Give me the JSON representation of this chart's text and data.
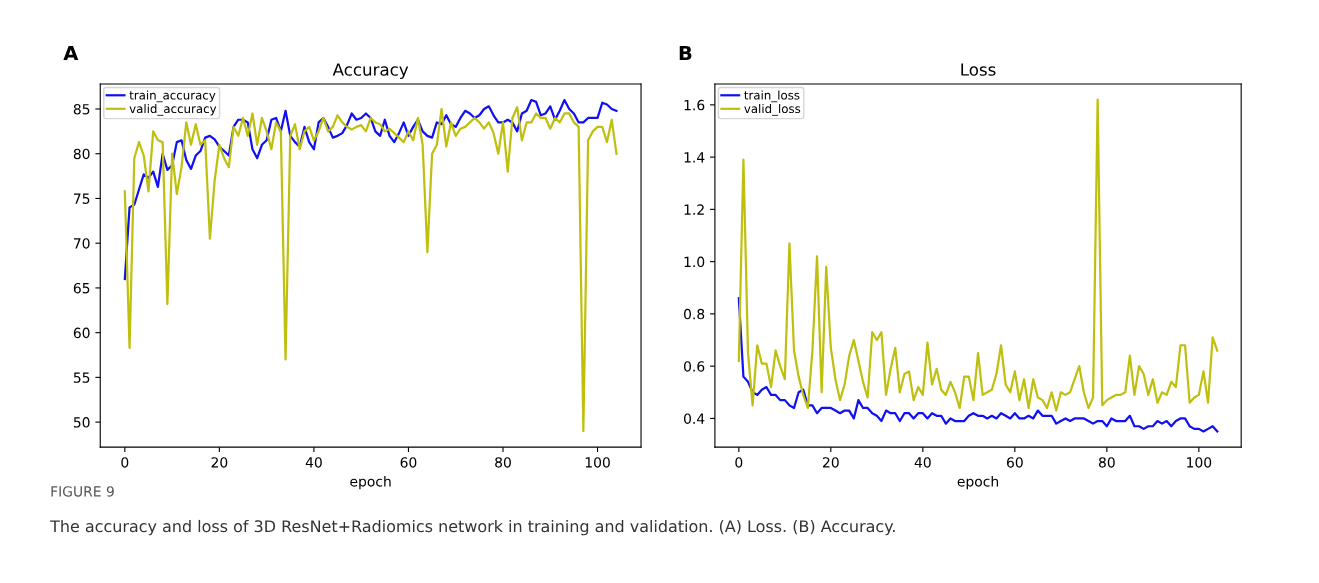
{
  "chart_data": [
    {
      "type": "line",
      "title": "Accuracy",
      "xlabel": "epoch",
      "annotations": [
        "A",
        "FIGURE 9",
        "The accuracy and loss of 3D ResNet+Radiomics network in training and validation. (A) Loss. (B) Accuracy."
      ],
      "x": [
        0,
        1,
        2,
        3,
        4,
        5,
        6,
        7,
        8,
        9,
        10,
        11,
        12,
        13,
        14,
        15,
        16,
        17,
        18,
        19,
        20,
        21,
        22,
        23,
        24,
        25,
        26,
        27,
        28,
        29,
        30,
        31,
        32,
        33,
        34,
        35,
        36,
        37,
        38,
        39,
        40,
        41,
        42,
        43,
        44,
        45,
        46,
        47,
        48,
        49,
        50,
        51,
        52,
        53,
        54,
        55,
        56,
        57,
        58,
        59,
        60,
        61,
        62,
        63,
        64,
        65,
        66,
        67,
        68,
        69,
        70,
        71,
        72,
        73,
        74,
        75,
        76,
        77,
        78,
        79,
        80,
        81,
        82,
        83,
        84,
        85,
        86,
        87,
        88,
        89,
        90,
        91,
        92,
        93,
        94,
        95,
        96,
        97,
        98,
        99,
        100,
        101,
        102,
        103,
        104
      ],
      "xlim": [
        -5.2,
        109.2
      ],
      "xticks": [
        0,
        20,
        40,
        60,
        80,
        100
      ],
      "ylim": [
        47.2,
        87.8
      ],
      "yticks": [
        50,
        55,
        60,
        65,
        70,
        75,
        80,
        85
      ],
      "legend": "top left",
      "grid": false,
      "series": [
        {
          "name": "train_accuracy",
          "color": "#1010f0",
          "values": [
            66,
            74,
            74.3,
            76,
            77.7,
            77.3,
            78,
            76.3,
            80,
            78.2,
            78.7,
            81.3,
            81.5,
            79.3,
            78.3,
            79.8,
            80.3,
            81.8,
            82,
            81.6,
            80.8,
            80.3,
            79.8,
            83,
            83.8,
            83.8,
            83.5,
            80.5,
            79.5,
            81,
            81.5,
            83.8,
            84,
            82.5,
            84.8,
            82,
            81.3,
            80.8,
            83,
            81.3,
            80.5,
            83.5,
            84,
            83,
            81.8,
            82,
            82.3,
            83.2,
            84.5,
            83.8,
            84,
            84.5,
            84,
            82.5,
            82,
            83.8,
            82,
            81.3,
            82.3,
            83.5,
            82,
            83,
            83.8,
            82.5,
            82,
            81.8,
            83.5,
            83.3,
            84.3,
            83.3,
            83,
            84,
            84.8,
            84.5,
            84,
            84.3,
            85,
            85.3,
            84.3,
            83.5,
            83.5,
            83.8,
            83.5,
            82.5,
            84.5,
            84.8,
            86,
            85.8,
            84.3,
            84.5,
            85.3,
            83.8,
            84.8,
            86,
            85,
            84.5,
            83.5,
            83.5,
            84,
            84,
            84,
            85.7,
            85.5,
            85,
            84.8
          ]
        },
        {
          "name": "valid_accuracy",
          "color": "#bfbf10",
          "values": [
            75.8,
            58.3,
            79.5,
            81.3,
            79.8,
            75.8,
            82.5,
            81.5,
            81.3,
            63.2,
            80,
            75.5,
            78.5,
            83.5,
            81,
            83.3,
            81,
            81.5,
            70.5,
            77,
            81,
            79.5,
            78.5,
            83,
            82,
            84,
            82,
            84.5,
            81,
            84,
            82.5,
            80.5,
            83.5,
            82.5,
            57,
            82,
            83.3,
            80.5,
            82.5,
            83,
            81.5,
            82.5,
            84,
            82.5,
            83,
            84.3,
            83.5,
            83,
            82.7,
            83,
            83.2,
            82.5,
            84,
            83.5,
            83.3,
            82.5,
            82.8,
            82.3,
            81.8,
            81.3,
            82.5,
            81.5,
            84,
            81,
            69,
            80,
            81,
            85,
            80.8,
            83.5,
            82,
            82.8,
            83,
            83.5,
            84,
            83.5,
            82.8,
            83.5,
            82.3,
            80,
            83.5,
            78,
            84,
            85.2,
            81.5,
            83.5,
            83.5,
            84.5,
            84,
            84,
            82.8,
            84,
            83.5,
            84.5,
            84.5,
            83.5,
            83,
            49,
            81.5,
            82.5,
            83,
            83,
            81.3,
            83.8,
            80
          ]
        }
      ]
    },
    {
      "type": "line",
      "title": "Loss",
      "xlabel": "epoch",
      "annotations": [
        "B"
      ],
      "x": [
        0,
        1,
        2,
        3,
        4,
        5,
        6,
        7,
        8,
        9,
        10,
        11,
        12,
        13,
        14,
        15,
        16,
        17,
        18,
        19,
        20,
        21,
        22,
        23,
        24,
        25,
        26,
        27,
        28,
        29,
        30,
        31,
        32,
        33,
        34,
        35,
        36,
        37,
        38,
        39,
        40,
        41,
        42,
        43,
        44,
        45,
        46,
        47,
        48,
        49,
        50,
        51,
        52,
        53,
        54,
        55,
        56,
        57,
        58,
        59,
        60,
        61,
        62,
        63,
        64,
        65,
        66,
        67,
        68,
        69,
        70,
        71,
        72,
        73,
        74,
        75,
        76,
        77,
        78,
        79,
        80,
        81,
        82,
        83,
        84,
        85,
        86,
        87,
        88,
        89,
        90,
        91,
        92,
        93,
        94,
        95,
        96,
        97,
        98,
        99,
        100,
        101,
        102,
        103,
        104
      ],
      "xlim": [
        -5.2,
        109.2
      ],
      "xticks": [
        0,
        20,
        40,
        60,
        80,
        100
      ],
      "ylim": [
        0.29,
        1.68
      ],
      "yticks": [
        0.4,
        0.6,
        0.8,
        {
          "value": 1.0,
          "label": "1.0"
        },
        1.2,
        1.4,
        1.6
      ],
      "legend": "top left",
      "grid": false,
      "series": [
        {
          "name": "train_loss",
          "color": "#1010f0",
          "values": [
            0.86,
            0.56,
            0.54,
            0.5,
            0.49,
            0.51,
            0.52,
            0.49,
            0.49,
            0.47,
            0.47,
            0.45,
            0.44,
            0.5,
            0.51,
            0.45,
            0.45,
            0.42,
            0.44,
            0.44,
            0.44,
            0.43,
            0.42,
            0.43,
            0.43,
            0.4,
            0.47,
            0.44,
            0.44,
            0.42,
            0.41,
            0.39,
            0.43,
            0.42,
            0.42,
            0.39,
            0.42,
            0.42,
            0.4,
            0.42,
            0.42,
            0.4,
            0.42,
            0.41,
            0.41,
            0.38,
            0.4,
            0.39,
            0.39,
            0.39,
            0.41,
            0.42,
            0.41,
            0.41,
            0.4,
            0.41,
            0.4,
            0.42,
            0.41,
            0.4,
            0.42,
            0.4,
            0.4,
            0.41,
            0.4,
            0.43,
            0.41,
            0.41,
            0.41,
            0.38,
            0.39,
            0.4,
            0.39,
            0.4,
            0.4,
            0.4,
            0.39,
            0.38,
            0.39,
            0.39,
            0.37,
            0.4,
            0.39,
            0.39,
            0.39,
            0.41,
            0.37,
            0.37,
            0.36,
            0.37,
            0.37,
            0.39,
            0.38,
            0.39,
            0.37,
            0.39,
            0.4,
            0.4,
            0.37,
            0.36,
            0.36,
            0.35,
            0.36,
            0.37,
            0.35
          ]
        },
        {
          "name": "valid_loss",
          "color": "#bfbf10",
          "values": [
            0.62,
            1.39,
            0.65,
            0.45,
            0.68,
            0.61,
            0.61,
            0.52,
            0.66,
            0.6,
            0.55,
            1.07,
            0.66,
            0.56,
            0.49,
            0.44,
            0.66,
            1.02,
            0.5,
            0.98,
            0.67,
            0.55,
            0.47,
            0.53,
            0.64,
            0.7,
            0.62,
            0.54,
            0.48,
            0.73,
            0.7,
            0.73,
            0.49,
            0.59,
            0.67,
            0.5,
            0.57,
            0.58,
            0.47,
            0.52,
            0.49,
            0.69,
            0.53,
            0.59,
            0.51,
            0.49,
            0.54,
            0.5,
            0.44,
            0.56,
            0.56,
            0.47,
            0.65,
            0.49,
            0.5,
            0.51,
            0.57,
            0.68,
            0.53,
            0.5,
            0.58,
            0.47,
            0.55,
            0.44,
            0.55,
            0.48,
            0.47,
            0.44,
            0.5,
            0.43,
            0.5,
            0.49,
            0.5,
            0.55,
            0.6,
            0.5,
            0.44,
            0.48,
            1.62,
            0.45,
            0.47,
            0.48,
            0.49,
            0.49,
            0.5,
            0.64,
            0.49,
            0.6,
            0.57,
            0.49,
            0.55,
            0.46,
            0.5,
            0.49,
            0.54,
            0.52,
            0.68,
            0.68,
            0.46,
            0.48,
            0.49,
            0.58,
            0.46,
            0.71,
            0.66
          ]
        }
      ]
    }
  ]
}
